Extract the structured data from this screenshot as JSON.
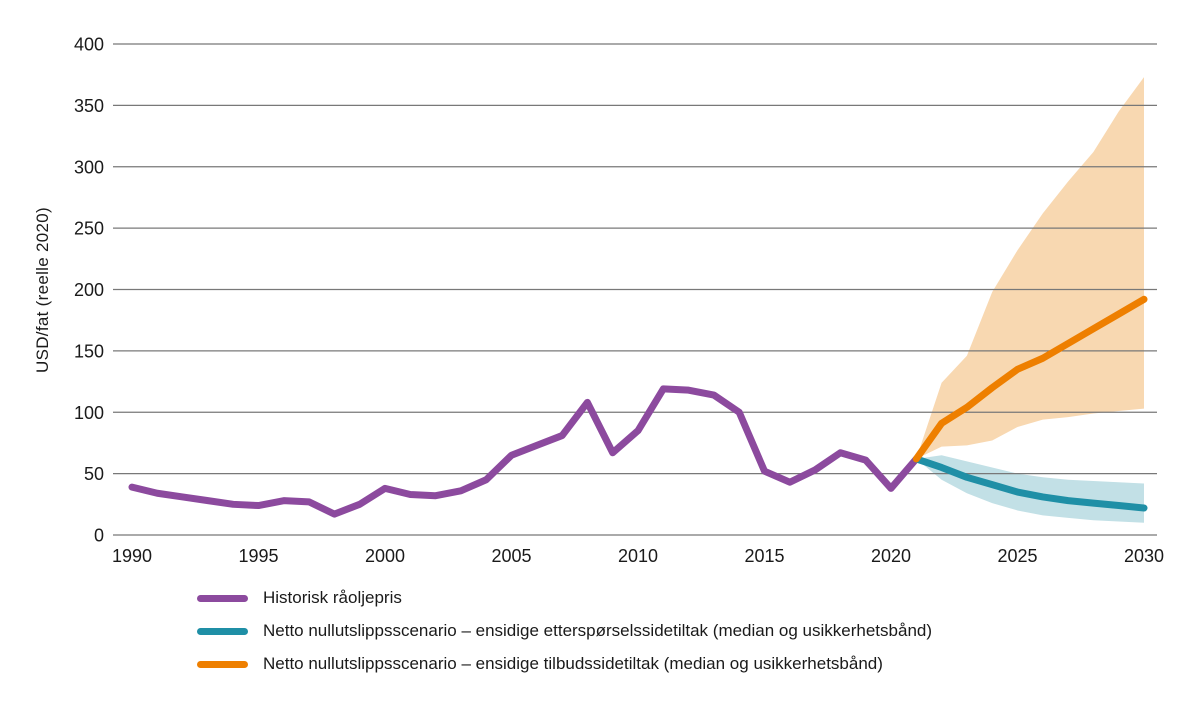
{
  "chart_data": {
    "type": "line",
    "title": "",
    "xlabel": "",
    "ylabel": "USD/fat (reelle 2020)",
    "xlim": [
      1990,
      2030
    ],
    "ylim": [
      0,
      400
    ],
    "x_ticks": [
      1990,
      1995,
      2000,
      2005,
      2010,
      2015,
      2020,
      2025,
      2030
    ],
    "y_ticks": [
      0,
      50,
      100,
      150,
      200,
      250,
      300,
      350,
      400
    ],
    "grid": "horizontal",
    "legend_position": "bottom-left",
    "colors": {
      "grid": "#787878",
      "text": "#1a1a1a",
      "background": "#ffffff"
    },
    "series": [
      {
        "key": "historisk-raoljepris",
        "name": "Historisk råoljepris",
        "color": "#8C4A9E",
        "x": [
          1990,
          1991,
          1992,
          1993,
          1994,
          1995,
          1996,
          1997,
          1998,
          1999,
          2000,
          2001,
          2002,
          2003,
          2004,
          2005,
          2006,
          2007,
          2008,
          2009,
          2010,
          2011,
          2012,
          2013,
          2014,
          2015,
          2016,
          2017,
          2018,
          2019,
          2020,
          2021
        ],
        "values": [
          39,
          34,
          31,
          28,
          25,
          24,
          28,
          27,
          17,
          25,
          38,
          33,
          32,
          36,
          45,
          65,
          73,
          81,
          108,
          67,
          85,
          119,
          118,
          114,
          100,
          52,
          43,
          53,
          67,
          61,
          38,
          62
        ]
      },
      {
        "key": "nze-ettersporselssidetiltak",
        "name": "Netto nullutslippsscenario – ensidige etterspørselssidetiltak (median og usikkerhetsbånd)",
        "color": "#1F8FA6",
        "band_color": "#C2E0E6",
        "x": [
          2021,
          2022,
          2023,
          2024,
          2025,
          2026,
          2027,
          2028,
          2029,
          2030
        ],
        "values": [
          62,
          55,
          47,
          41,
          35,
          31,
          28,
          26,
          24,
          22
        ],
        "band_upper": [
          62,
          65,
          60,
          55,
          50,
          47,
          45,
          44,
          43,
          42
        ],
        "band_lower": [
          62,
          45,
          34,
          26,
          20,
          16,
          14,
          12,
          11,
          10
        ]
      },
      {
        "key": "nze-tilbudssidetiltak",
        "name": "Netto nullutslippsscenario – ensidige tilbudssidetiltak (median og usikkerhetsbånd)",
        "color": "#EE7F00",
        "band_color": "#F8D8B1",
        "x": [
          2021,
          2022,
          2023,
          2024,
          2025,
          2026,
          2027,
          2028,
          2029,
          2030
        ],
        "values": [
          62,
          91,
          104,
          120,
          135,
          144,
          156,
          168,
          180,
          192
        ],
        "band_upper": [
          62,
          124,
          146,
          198,
          232,
          262,
          288,
          312,
          345,
          373
        ],
        "band_lower": [
          62,
          72,
          73,
          77,
          88,
          94,
          96,
          99,
          101,
          103
        ]
      }
    ]
  }
}
